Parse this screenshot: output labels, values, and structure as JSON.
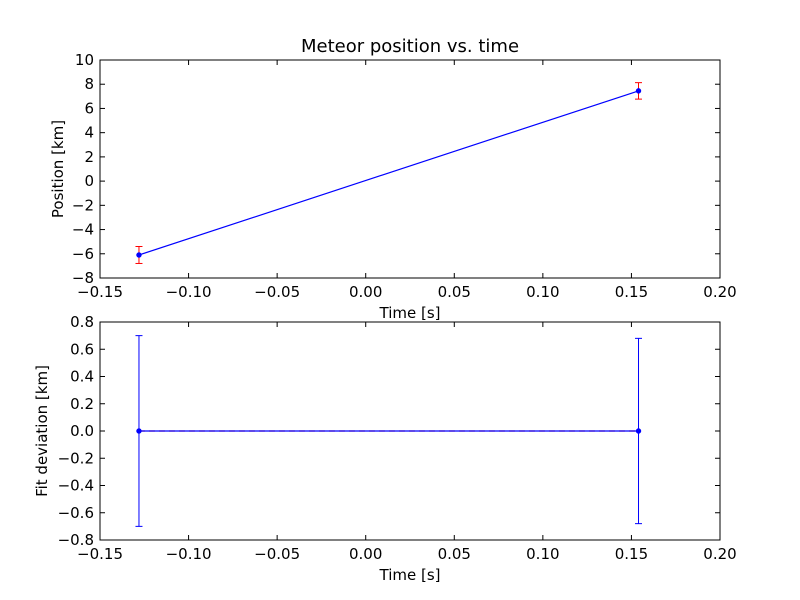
{
  "chart_data": [
    {
      "type": "line",
      "title": "Meteor position vs. time",
      "xlabel": "Time [s]",
      "ylabel": "Position [km]",
      "xlim": [
        -0.15,
        0.2
      ],
      "ylim": [
        -8,
        10
      ],
      "xticks": [
        -0.15,
        -0.1,
        -0.05,
        0.0,
        0.05,
        0.1,
        0.15,
        0.2
      ],
      "xtick_labels": [
        "−0.15",
        "−0.10",
        "−0.05",
        "0.00",
        "0.05",
        "0.10",
        "0.15",
        "0.20"
      ],
      "yticks": [
        -8,
        -6,
        -4,
        -2,
        0,
        2,
        4,
        6,
        8,
        10
      ],
      "ytick_labels": [
        "−8",
        "−6",
        "−4",
        "−2",
        "0",
        "2",
        "4",
        "6",
        "8",
        "10"
      ],
      "grid": false,
      "series": [
        {
          "kind": "fit-line",
          "color": "#0000ff",
          "x": [
            -0.128,
            0.154
          ],
          "y": [
            -6.1,
            7.45
          ]
        },
        {
          "kind": "points-with-errorbars",
          "color": "#0000ff",
          "errorbar_color": "#ff0000",
          "x": [
            -0.128,
            0.154
          ],
          "y": [
            -6.1,
            7.45
          ],
          "yerr": [
            0.7,
            0.68
          ]
        }
      ]
    },
    {
      "type": "line",
      "title": "",
      "xlabel": "Time [s]",
      "ylabel": "Fit deviation [km]",
      "xlim": [
        -0.15,
        0.2
      ],
      "ylim": [
        -0.8,
        0.8
      ],
      "xticks": [
        -0.15,
        -0.1,
        -0.05,
        0.0,
        0.05,
        0.1,
        0.15,
        0.2
      ],
      "xtick_labels": [
        "−0.15",
        "−0.10",
        "−0.05",
        "0.00",
        "0.05",
        "0.10",
        "0.15",
        "0.20"
      ],
      "yticks": [
        -0.8,
        -0.6,
        -0.4,
        -0.2,
        0.0,
        0.2,
        0.4,
        0.6,
        0.8
      ],
      "ytick_labels": [
        "−0.8",
        "−0.6",
        "−0.4",
        "−0.2",
        "0.0",
        "0.2",
        "0.4",
        "0.6",
        "0.8"
      ],
      "grid": false,
      "series": [
        {
          "kind": "zero-reference",
          "color": "#ff0000",
          "dashed": true,
          "x": [
            -0.128,
            0.154
          ],
          "y": [
            0,
            0
          ]
        },
        {
          "kind": "points-with-errorbars",
          "color": "#0000ff",
          "errorbar_color": "#0000ff",
          "connect": true,
          "x": [
            -0.128,
            0.154
          ],
          "y": [
            0,
            0
          ],
          "yerr": [
            0.7,
            0.68
          ]
        }
      ]
    }
  ]
}
